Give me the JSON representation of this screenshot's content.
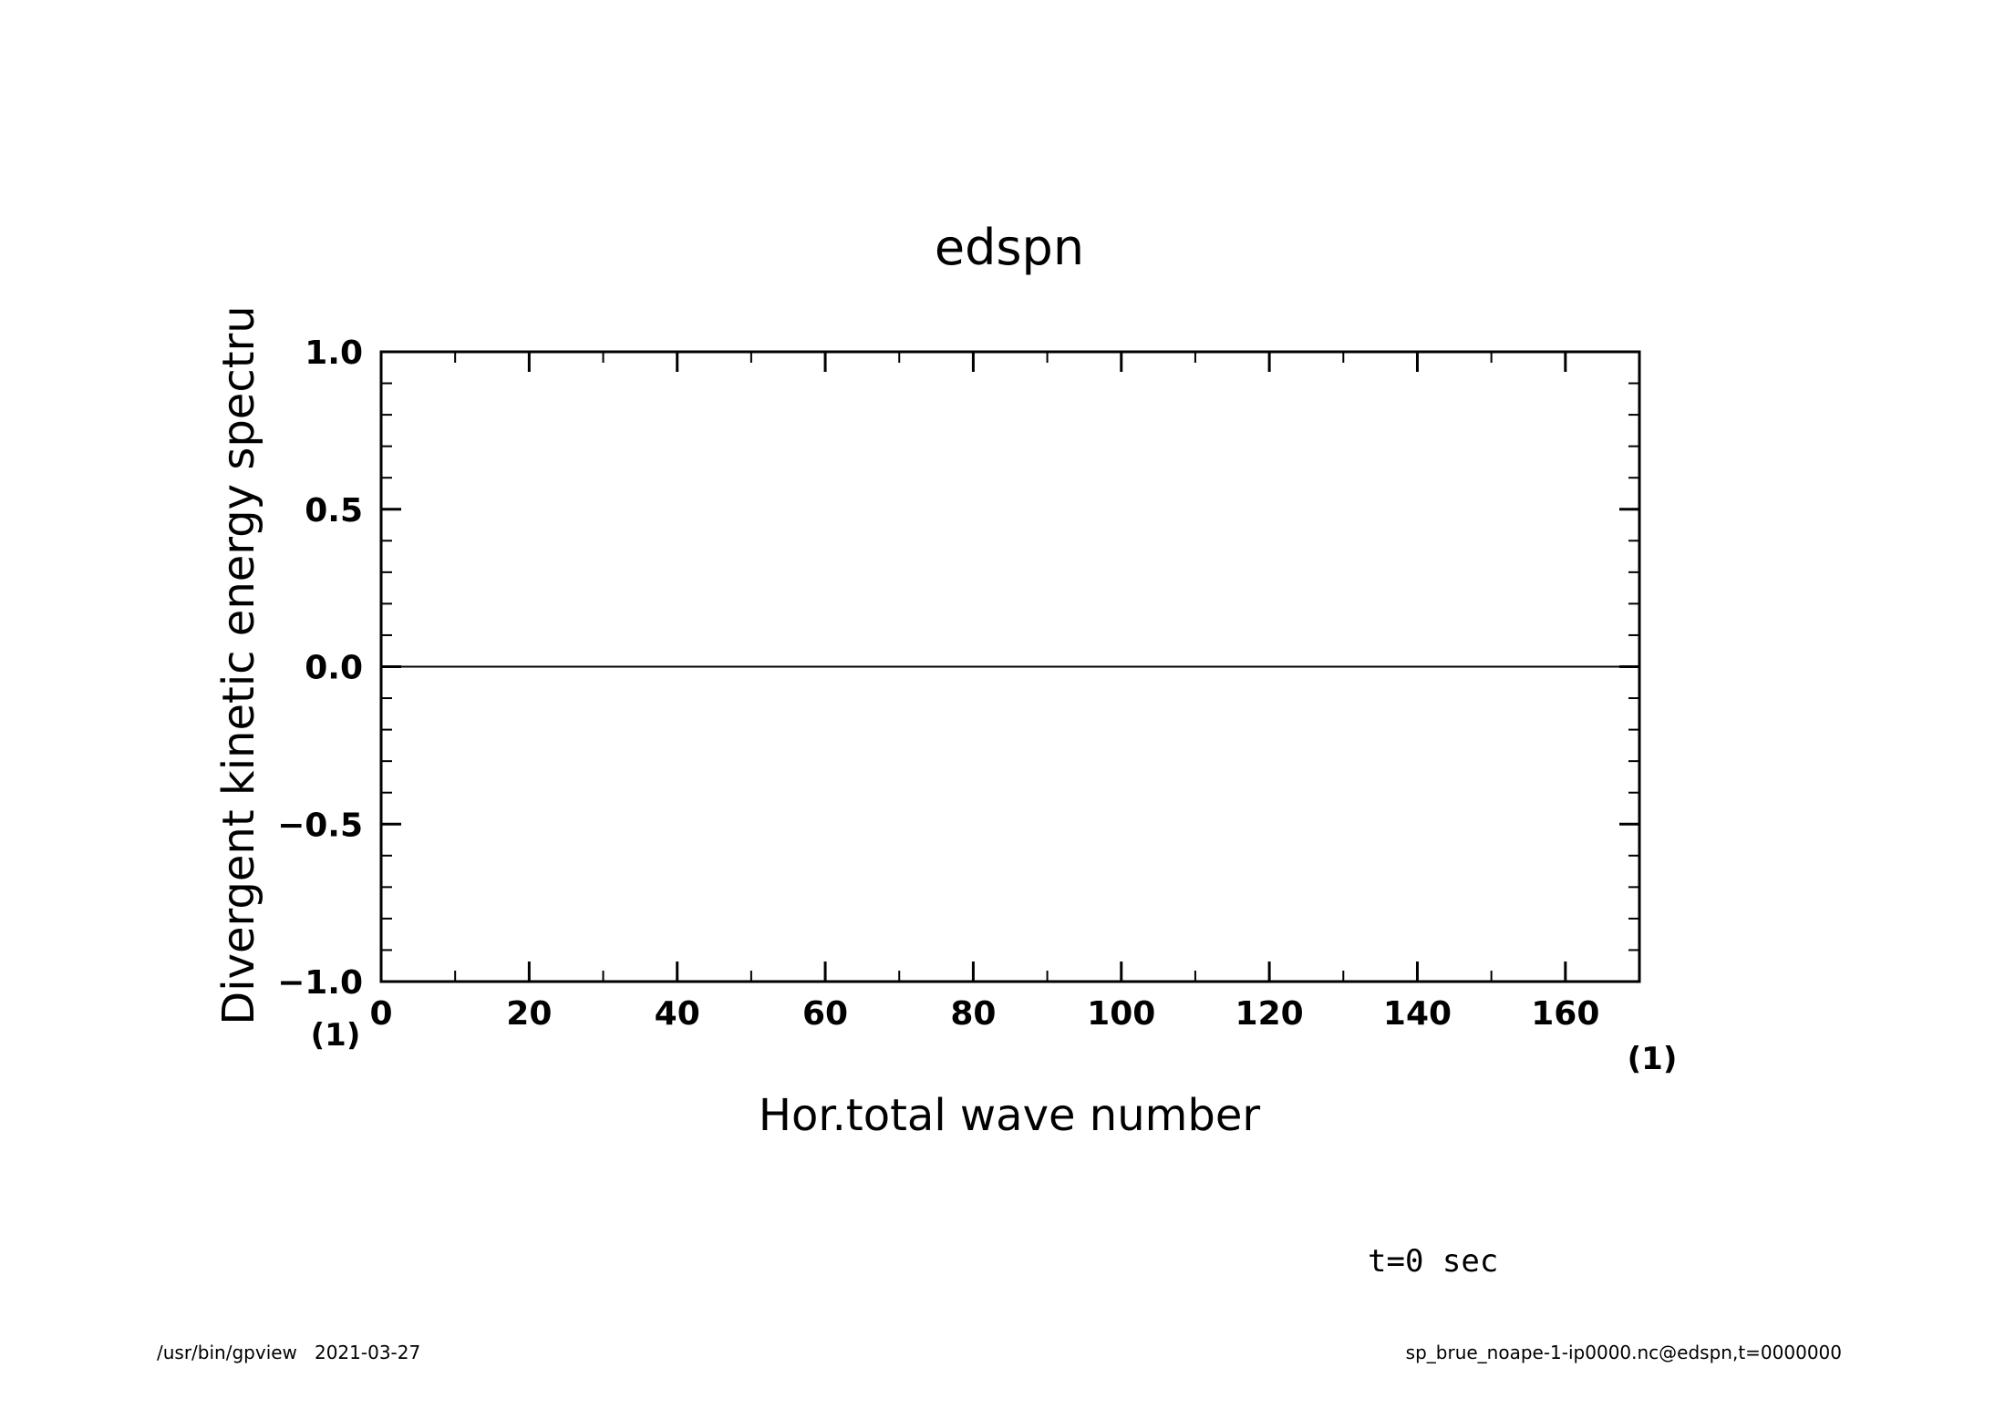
{
  "chart_data": {
    "type": "line",
    "title": "edspn",
    "xlabel": "Hor.total wave number",
    "ylabel": "Divergent kinetic energy spectru",
    "x_unit": "(1)",
    "y_unit": "(1)",
    "xlim": [
      0,
      170
    ],
    "ylim": [
      -1.0,
      1.0
    ],
    "x_ticks": [
      0,
      20,
      40,
      60,
      80,
      100,
      120,
      140,
      160
    ],
    "x_tick_labels": [
      "0",
      "20",
      "40",
      "60",
      "80",
      "100",
      "120",
      "140",
      "160"
    ],
    "y_ticks": [
      1.0,
      0.5,
      0.0,
      -0.5,
      -1.0
    ],
    "y_tick_labels": [
      "1.0",
      "0.5",
      "0.0",
      "−0.5",
      "−1.0"
    ],
    "grid": false,
    "series": [
      {
        "x": [
          0,
          170
        ],
        "y": [
          0.0,
          0.0
        ]
      }
    ]
  },
  "annotations": {
    "time": "t=0 sec"
  },
  "footer": {
    "left": "/usr/bin/gpview   2021-03-27",
    "right": "sp_brue_noape-1-ip0000.nc@edspn,t=0000000"
  }
}
